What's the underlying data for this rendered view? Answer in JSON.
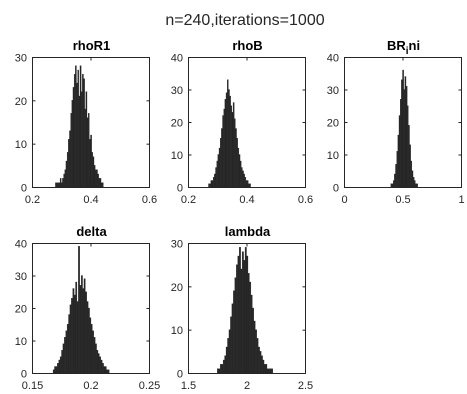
{
  "figure_title": "n=240,iterations=1000",
  "chart_data": [
    {
      "type": "bar",
      "title": "rhoR1",
      "xlim": [
        0.2,
        0.6
      ],
      "ylim": [
        0,
        30
      ],
      "xticks": [
        0.2,
        0.4,
        0.6
      ],
      "yticks": [
        0,
        10,
        20,
        30
      ],
      "bin_start": 0.28,
      "bin_width": 0.004,
      "counts": [
        1,
        1,
        1,
        1,
        2,
        1,
        2,
        3,
        4,
        6,
        8,
        11,
        13,
        17,
        20,
        23,
        26,
        28,
        24,
        27,
        21,
        28,
        22,
        26,
        25,
        18,
        22,
        16,
        17,
        11,
        12,
        8,
        7,
        5,
        4,
        4,
        3,
        2,
        2,
        1,
        1
      ]
    },
    {
      "type": "bar",
      "title": "rhoB",
      "xlim": [
        0.2,
        0.6
      ],
      "ylim": [
        0,
        40
      ],
      "xticks": [
        0.2,
        0.4,
        0.6
      ],
      "yticks": [
        0,
        10,
        20,
        30,
        40
      ],
      "bin_start": 0.27,
      "bin_width": 0.004,
      "counts": [
        1,
        1,
        2,
        2,
        3,
        4,
        6,
        8,
        10,
        12,
        15,
        18,
        22,
        24,
        27,
        29,
        33,
        30,
        28,
        25,
        23,
        26,
        21,
        18,
        15,
        12,
        10,
        8,
        6,
        5,
        4,
        3,
        2,
        2,
        1,
        1
      ]
    },
    {
      "type": "bar",
      "title": "BR_ini",
      "title_main": "BR",
      "title_sub": "i",
      "title_rest": "ni",
      "xlim": [
        0,
        1
      ],
      "ylim": [
        0,
        40
      ],
      "xticks": [
        0,
        0.5,
        1
      ],
      "yticks": [
        0,
        10,
        20,
        30,
        40
      ],
      "bin_start": 0.4,
      "bin_width": 0.01,
      "counts": [
        1,
        1,
        2,
        4,
        7,
        11,
        16,
        22,
        27,
        33,
        36,
        30,
        34,
        31,
        25,
        19,
        13,
        8,
        5,
        3,
        2,
        1,
        1
      ]
    },
    {
      "type": "bar",
      "title": "delta",
      "xlim": [
        0.15,
        0.25
      ],
      "ylim": [
        0,
        40
      ],
      "xticks": [
        0.15,
        0.2,
        0.25
      ],
      "yticks": [
        0,
        10,
        20,
        30,
        40
      ],
      "bin_start": 0.168,
      "bin_width": 0.0012,
      "counts": [
        1,
        2,
        2,
        3,
        4,
        5,
        7,
        9,
        11,
        13,
        15,
        18,
        21,
        23,
        26,
        24,
        28,
        22,
        39,
        27,
        30,
        26,
        29,
        25,
        22,
        20,
        17,
        15,
        13,
        11,
        9,
        7,
        6,
        5,
        4,
        3,
        2,
        2,
        1,
        1
      ]
    },
    {
      "type": "bar",
      "title": "lambda",
      "xlim": [
        1.5,
        2.5
      ],
      "ylim": [
        0,
        30
      ],
      "xticks": [
        1.5,
        2,
        2.5
      ],
      "yticks": [
        0,
        10,
        20,
        30
      ],
      "bin_start": 1.75,
      "bin_width": 0.0125,
      "counts": [
        1,
        1,
        2,
        2,
        3,
        4,
        6,
        8,
        10,
        13,
        16,
        19,
        22,
        25,
        27,
        29,
        24,
        28,
        26,
        29,
        27,
        23,
        21,
        18,
        15,
        12,
        10,
        8,
        6,
        5,
        4,
        3,
        2,
        2,
        1,
        1,
        1,
        1
      ]
    }
  ]
}
